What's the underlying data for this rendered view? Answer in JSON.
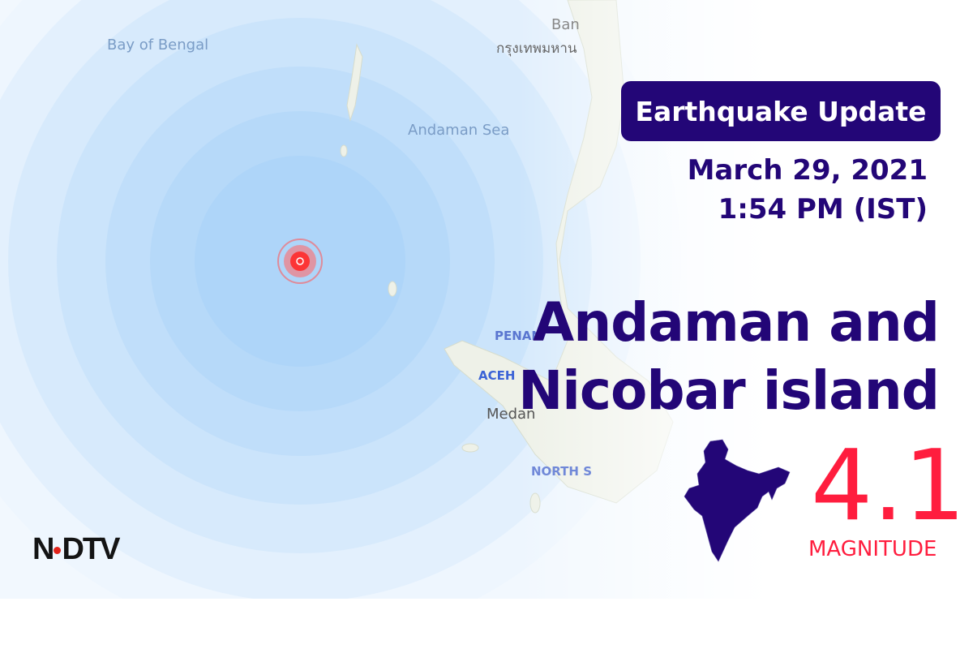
{
  "map": {
    "labels": {
      "bay_of_bengal": "Bay of Bengal",
      "andaman_sea": "Andaman Sea",
      "aceh": "ACEH",
      "penang": "PENAN",
      "medan": "Medan",
      "north_sumatra": "NORTH S",
      "bangkok_thai": "กรุงเทพมหาน",
      "bangkok": "Ban"
    },
    "water_color": "#aad3f7",
    "ring_color": "#8ec5f5",
    "epicenter_color": "#ff2a2a"
  },
  "header": {
    "badge": "Earthquake Update",
    "date": "March 29, 2021",
    "time": "1:54 PM (IST)",
    "badge_color": "#230677"
  },
  "location": {
    "line1": "Andaman and",
    "line2": "Nicobar island"
  },
  "magnitude": {
    "value": "4.1",
    "label": "MAGNITUDE",
    "color": "#ff1d3e"
  },
  "logo": {
    "text": "NDTV"
  }
}
